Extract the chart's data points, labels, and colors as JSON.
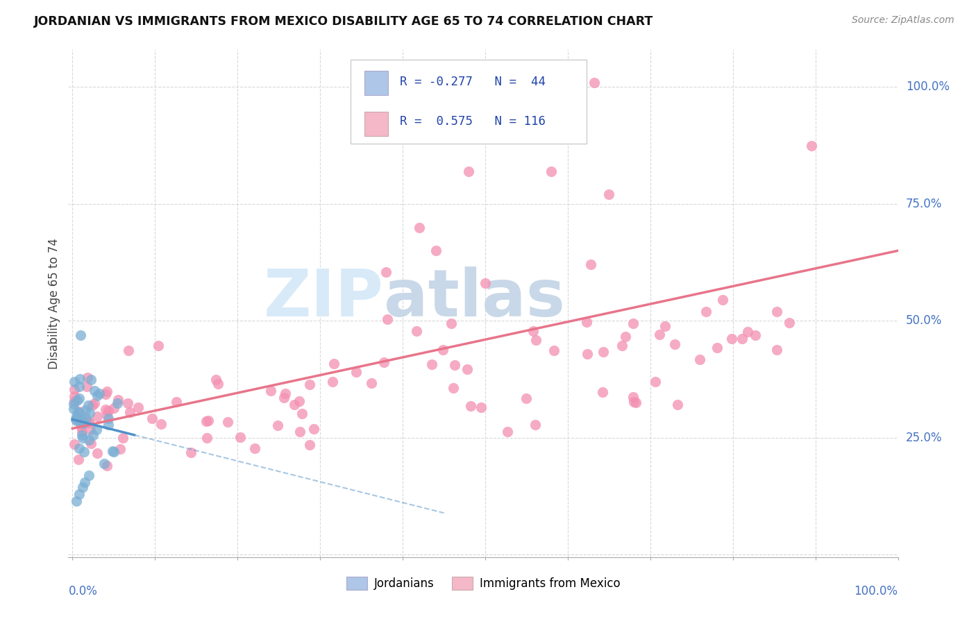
{
  "title": "JORDANIAN VS IMMIGRANTS FROM MEXICO DISABILITY AGE 65 TO 74 CORRELATION CHART",
  "source": "Source: ZipAtlas.com",
  "ylabel": "Disability Age 65 to 74",
  "jordanian_color": "#7bafd4",
  "jordanian_fill": "#aec6e8",
  "mexico_color": "#f48fb1",
  "mexico_fill": "#f4b8c8",
  "regression_mexico_color": "#e8748a",
  "regression_jordan_color": "#5090c8",
  "background_color": "#ffffff",
  "grid_color": "#d0d0d0",
  "watermark_color": "#d8eaf8",
  "watermark_color2": "#c8d8e8",
  "label_color": "#4472c4",
  "R_jordan": -0.277,
  "N_jordan": 44,
  "R_mexico": 0.575,
  "N_mexico": 116
}
